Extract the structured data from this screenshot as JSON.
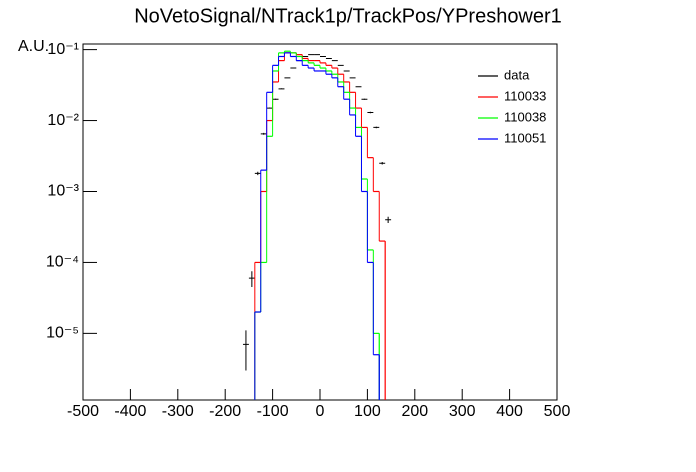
{
  "chart_data": {
    "type": "histogram",
    "title": "NoVetoSignal/NTrack1p/TrackPos/YPreshower1",
    "y_label": "A.U.",
    "bins": [
      -162.5,
      -150,
      -137.5,
      -125,
      -112.5,
      -100,
      -87.5,
      -75,
      -62.5,
      -50,
      -37.5,
      -25,
      -12.5,
      0,
      12.5,
      25,
      37.5,
      50,
      62.5,
      75,
      87.5,
      100,
      112.5,
      125,
      137.5,
      150,
      162.5
    ],
    "series": [
      {
        "name": "data",
        "color": "#000000",
        "style": "errorbar",
        "values": [
          7e-06,
          6e-05,
          0.0018,
          0.0065,
          0.015,
          0.02,
          0.028,
          0.04,
          0.055,
          0.07,
          0.08,
          0.085,
          0.085,
          0.08,
          0.075,
          0.07,
          0.06,
          0.05,
          0.04,
          0.03,
          0.02,
          0.013,
          0.008,
          0.0025,
          0.0004,
          null
        ],
        "errors": [
          4e-06,
          1.5e-05,
          0.0001,
          0.0002,
          0.0003,
          0.0004,
          0.0005,
          0.0006,
          0.0007,
          0.0008,
          0.0008,
          0.0009,
          0.0009,
          0.0008,
          0.0008,
          0.0008,
          0.0007,
          0.0007,
          0.0006,
          0.0005,
          0.0004,
          0.0003,
          0.0002,
          0.0001,
          4e-05,
          null
        ]
      },
      {
        "name": "110033",
        "color": "#ff0000",
        "style": "step",
        "values": [
          null,
          null,
          0.0001,
          0.001,
          0.01,
          0.035,
          0.07,
          0.09,
          0.09,
          0.085,
          0.075,
          0.07,
          0.07,
          0.065,
          0.06,
          0.055,
          0.045,
          0.035,
          0.025,
          0.015,
          0.008,
          0.003,
          0.001,
          0.0002,
          null,
          null
        ]
      },
      {
        "name": "110038",
        "color": "#00ff00",
        "style": "step",
        "values": [
          null,
          null,
          2e-05,
          0.0001,
          0.006,
          0.05,
          0.09,
          0.095,
          0.09,
          0.08,
          0.07,
          0.065,
          0.06,
          0.055,
          0.05,
          0.045,
          0.035,
          0.025,
          0.015,
          0.008,
          0.0015,
          0.00015,
          1e-05,
          null,
          null,
          null
        ]
      },
      {
        "name": "110051",
        "color": "#0000ff",
        "style": "step",
        "values": [
          null,
          null,
          2e-05,
          0.002,
          0.025,
          0.06,
          0.08,
          0.09,
          0.08,
          0.07,
          0.06,
          0.055,
          0.05,
          0.05,
          0.045,
          0.04,
          0.03,
          0.02,
          0.012,
          0.006,
          0.001,
          0.0001,
          5e-06,
          null,
          null,
          null
        ]
      }
    ],
    "xlim": [
      -500,
      500
    ],
    "xticks": [
      -500,
      -400,
      -300,
      -200,
      -100,
      0,
      100,
      200,
      300,
      400,
      500
    ],
    "ylim": [
      1.15e-06,
      0.12
    ],
    "ylog": true,
    "yticks": [
      {
        "value": 1e-05,
        "label": "10⁻⁵"
      },
      {
        "value": 0.0001,
        "label": "10⁻⁴"
      },
      {
        "value": 0.001,
        "label": "10⁻³"
      },
      {
        "value": 0.01,
        "label": "10⁻²"
      },
      {
        "value": 0.1,
        "label": "10⁻¹"
      }
    ],
    "legend": "top-right"
  }
}
